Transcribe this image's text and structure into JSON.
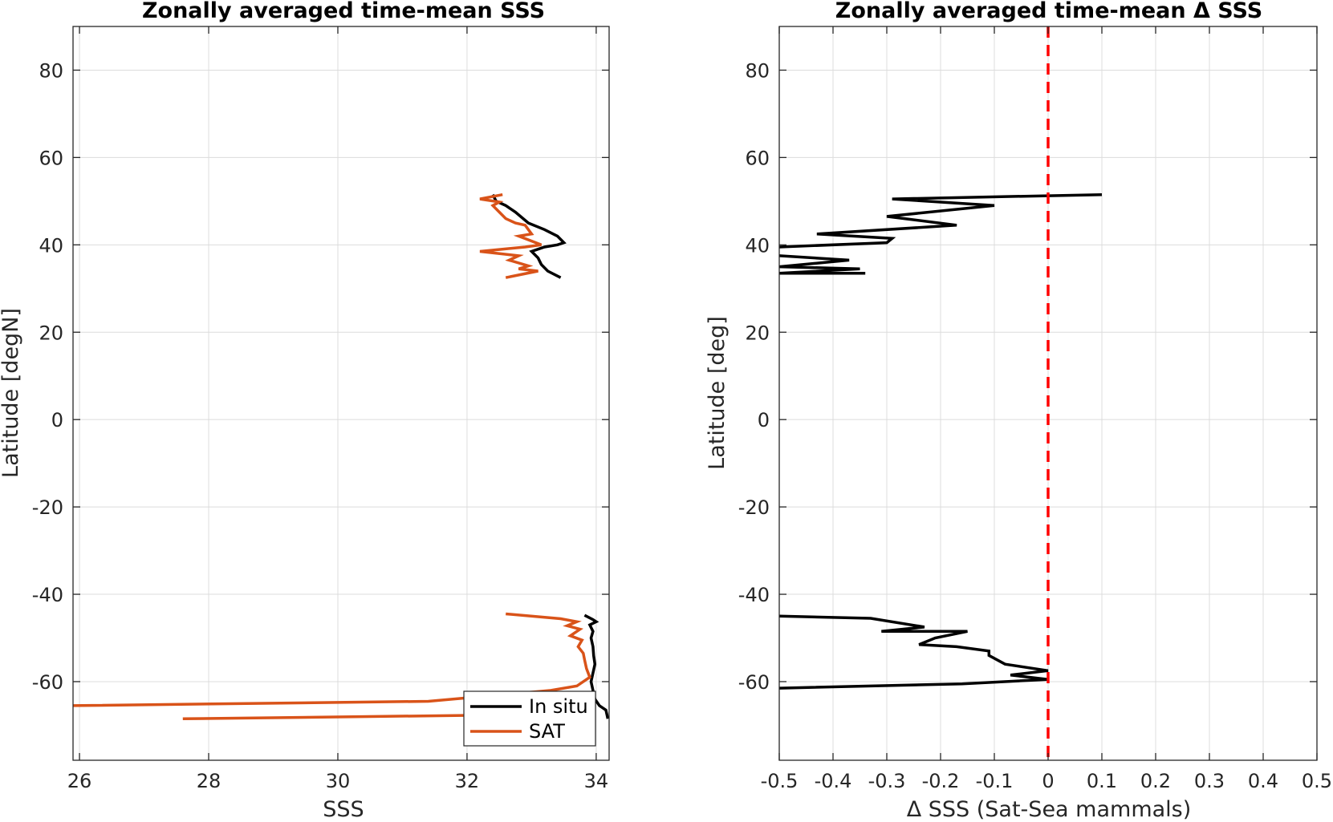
{
  "chart_data": [
    {
      "type": "line",
      "title": "Zonally averaged time-mean SSS",
      "xlabel": "SSS",
      "ylabel": "Latitude [degN]",
      "xlim": [
        25.9,
        34.2
      ],
      "ylim": [
        -78,
        90
      ],
      "xticks": [
        26,
        28,
        30,
        32,
        34
      ],
      "xtick_labels": [
        "26",
        "28",
        "30",
        "32",
        "34"
      ],
      "yticks": [
        -60,
        -40,
        -20,
        0,
        20,
        40,
        60,
        80
      ],
      "ytick_labels": [
        "-60",
        "-40",
        "-20",
        "0",
        "20",
        "40",
        "60",
        "80"
      ],
      "grid": true,
      "legend": "bottom-right",
      "series": [
        {
          "name": "In situ",
          "color": "#000000",
          "segments": [
            [
              [
                32.4,
                51.5
              ],
              [
                32.45,
                50
              ],
              [
                32.6,
                49
              ],
              [
                32.75,
                47.5
              ],
              [
                32.95,
                45
              ],
              [
                33.2,
                43.5
              ],
              [
                33.4,
                42
              ],
              [
                33.5,
                40.5
              ],
              [
                33.4,
                40
              ],
              [
                33.2,
                39.5
              ],
              [
                33.0,
                38.5
              ],
              [
                33.1,
                37
              ],
              [
                33.15,
                35.5
              ],
              [
                33.25,
                34
              ],
              [
                33.45,
                32.5
              ]
            ],
            [
              [
                33.82,
                -44.8
              ],
              [
                33.95,
                -45.8
              ],
              [
                34.0,
                -46.3
              ],
              [
                33.9,
                -47
              ],
              [
                33.95,
                -48.5
              ],
              [
                33.92,
                -50
              ],
              [
                33.95,
                -52
              ],
              [
                33.96,
                -54
              ],
              [
                33.98,
                -56
              ],
              [
                33.95,
                -58
              ],
              [
                33.92,
                -60
              ],
              [
                33.95,
                -62
              ],
              [
                33.98,
                -64
              ],
              [
                34.05,
                -65.5
              ],
              [
                34.15,
                -66.5
              ],
              [
                34.18,
                -68.5
              ]
            ]
          ]
        },
        {
          "name": "SAT",
          "color": "#D95319",
          "segments": [
            [
              [
                32.55,
                51.5
              ],
              [
                32.2,
                50.5
              ],
              [
                32.5,
                49.8
              ],
              [
                32.4,
                49
              ],
              [
                32.5,
                47.5
              ],
              [
                32.6,
                46
              ],
              [
                32.75,
                45
              ],
              [
                32.9,
                44.5
              ],
              [
                32.95,
                43.5
              ],
              [
                33.0,
                42.5
              ],
              [
                32.8,
                42
              ],
              [
                33.15,
                40
              ],
              [
                32.9,
                39.5
              ],
              [
                32.2,
                38.5
              ],
              [
                32.8,
                37.5
              ],
              [
                32.65,
                36.5
              ],
              [
                32.95,
                35.2
              ],
              [
                32.8,
                34.5
              ],
              [
                33.1,
                34
              ],
              [
                32.6,
                32.5
              ]
            ],
            [
              [
                32.6,
                -44.5
              ],
              [
                33.45,
                -45.6
              ],
              [
                33.7,
                -46.3
              ],
              [
                33.55,
                -47.2
              ],
              [
                33.75,
                -48
              ],
              [
                33.6,
                -49.5
              ],
              [
                33.78,
                -50.5
              ],
              [
                33.72,
                -52
              ],
              [
                33.8,
                -53.5
              ],
              [
                33.82,
                -55
              ],
              [
                33.85,
                -57
              ],
              [
                33.9,
                -59
              ],
              [
                33.7,
                -61
              ],
              [
                33.3,
                -62
              ],
              [
                31.4,
                -64.5
              ],
              [
                25.9,
                -65.5
              ]
            ],
            [
              [
                33.3,
                -67.5
              ],
              [
                27.6,
                -68.5
              ]
            ]
          ]
        }
      ]
    },
    {
      "type": "line",
      "title": "Zonally averaged time-mean Δ SSS",
      "xlabel": "Δ SSS (Sat-Sea mammals)",
      "ylabel": "Latitude [deg]",
      "xlim": [
        -0.5,
        0.5
      ],
      "ylim": [
        -78,
        90
      ],
      "xticks": [
        -0.5,
        -0.4,
        -0.3,
        -0.2,
        -0.1,
        0,
        0.1,
        0.2,
        0.3,
        0.4,
        0.5
      ],
      "xtick_labels": [
        "-0.5",
        "-0.4",
        "-0.3",
        "-0.2",
        "-0.1",
        "0",
        "0.1",
        "0.2",
        "0.3",
        "0.4",
        "0.5"
      ],
      "yticks": [
        -60,
        -40,
        -20,
        0,
        20,
        40,
        60,
        80
      ],
      "ytick_labels": [
        "-60",
        "-40",
        "-20",
        "0",
        "20",
        "40",
        "60",
        "80"
      ],
      "grid": true,
      "reference_line": {
        "x": 0,
        "color": "#FF0000",
        "style": "dashed"
      },
      "series": [
        {
          "color": "#000000",
          "segments": [
            [
              [
                0.1,
                51.5
              ],
              [
                -0.29,
                50.5
              ],
              [
                -0.1,
                49
              ],
              [
                -0.3,
                46.5
              ],
              [
                -0.17,
                44.5
              ],
              [
                -0.43,
                42.5
              ],
              [
                -0.29,
                41.5
              ],
              [
                -0.3,
                40.5
              ],
              [
                -0.5,
                39.5
              ]
            ],
            [
              [
                -0.5,
                37.5
              ],
              [
                -0.37,
                36.5
              ],
              [
                -0.5,
                35
              ],
              [
                -0.35,
                34.5
              ],
              [
                -0.5,
                33.5
              ],
              [
                -0.34,
                33.5
              ]
            ],
            [
              [
                -0.5,
                -45
              ],
              [
                -0.33,
                -45.5
              ],
              [
                -0.23,
                -47.5
              ],
              [
                -0.31,
                -48.5
              ],
              [
                -0.15,
                -48.5
              ],
              [
                -0.21,
                -50
              ],
              [
                -0.24,
                -51.5
              ],
              [
                -0.17,
                -52
              ],
              [
                -0.11,
                -53
              ],
              [
                -0.11,
                -54
              ],
              [
                -0.08,
                -56
              ],
              [
                0.0,
                -57.5
              ],
              [
                -0.07,
                -58.5
              ],
              [
                0.0,
                -59.5
              ],
              [
                -0.16,
                -60.5
              ],
              [
                -0.5,
                -61.5
              ]
            ]
          ]
        }
      ]
    }
  ],
  "legend": {
    "in_situ": "In situ",
    "sat": "SAT"
  }
}
